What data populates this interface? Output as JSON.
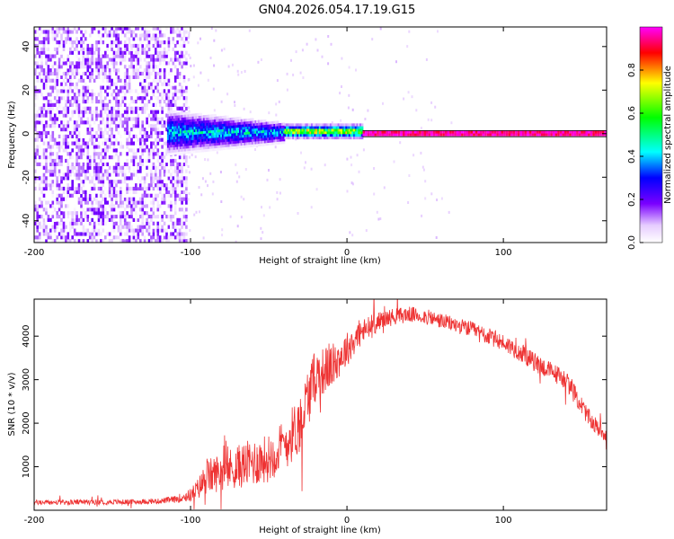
{
  "title": "GN04.2026.054.17.19.G15",
  "chart_data": [
    {
      "type": "heatmap",
      "xlabel": "Height of straight line (km)",
      "ylabel": "Frequency (Hz)",
      "xlim": [
        -200,
        166
      ],
      "ylim": [
        -50,
        49
      ],
      "xticks": [
        -200,
        -100,
        0,
        100
      ],
      "xtick_labels": [
        "-200",
        "-100",
        "0",
        "100"
      ],
      "yticks": [
        -40,
        -20,
        0,
        20,
        40
      ],
      "ytick_labels": [
        "-40",
        "-20",
        "0",
        "20",
        "40"
      ],
      "colorbar": {
        "label": "Normalized spectral amplitude",
        "range": [
          0,
          1
        ],
        "ticks": [
          0,
          0.2,
          0.4,
          0.6,
          0.8
        ],
        "tick_labels": [
          "0.0",
          "0.2",
          "0.4",
          "0.6",
          "0.8"
        ]
      },
      "regions": [
        {
          "x": [
            -200,
            -102
          ],
          "description": "noise",
          "amplitude_max": 0.2
        },
        {
          "x": [
            -115,
            -40
          ],
          "center_freq": 0,
          "spread_hz": 10,
          "amplitude_max": 0.55
        },
        {
          "x": [
            -40,
            10
          ],
          "center_freq": 0.5,
          "spread_hz": 3,
          "amplitude_max": 0.95
        },
        {
          "x": [
            10,
            166
          ],
          "center_freq": 0,
          "spread_hz": 1,
          "amplitude_max": 1.0
        }
      ]
    },
    {
      "type": "line",
      "xlabel": "Height of straight line (km)",
      "ylabel": "SNR (10 * v/v)",
      "xlim": [
        -200,
        166
      ],
      "ylim": [
        0,
        4850
      ],
      "xticks": [
        -200,
        -100,
        0,
        100
      ],
      "xtick_labels": [
        "-200",
        "-100",
        "0",
        "100"
      ],
      "yticks": [
        1000,
        2000,
        3000,
        4000
      ],
      "ytick_labels": [
        "1000",
        "2000",
        "3000",
        "4000"
      ],
      "color": "#ee3333",
      "series": [
        {
          "name": "SNR",
          "x": [
            -200,
            -180,
            -160,
            -140,
            -120,
            -110,
            -100,
            -95,
            -90,
            -80,
            -70,
            -60,
            -50,
            -40,
            -30,
            -25,
            -20,
            -15,
            -10,
            -5,
            0,
            5,
            10,
            15,
            20,
            30,
            40,
            50,
            60,
            70,
            80,
            90,
            100,
            110,
            120,
            130,
            140,
            145,
            150,
            155,
            160,
            166
          ],
          "values": [
            180,
            180,
            190,
            190,
            210,
            250,
            350,
            500,
            750,
            900,
            1000,
            1100,
            1200,
            1500,
            2000,
            2600,
            3100,
            3200,
            3300,
            3500,
            3700,
            3950,
            4100,
            4200,
            4350,
            4450,
            4500,
            4450,
            4350,
            4250,
            4150,
            4000,
            3850,
            3650,
            3400,
            3200,
            3000,
            2700,
            2400,
            2100,
            1900,
            1750
          ],
          "noise_amplitude": [
            60,
            60,
            60,
            60,
            60,
            80,
            150,
            250,
            400,
            450,
            500,
            550,
            550,
            600,
            700,
            700,
            600,
            550,
            500,
            450,
            400,
            350,
            300,
            300,
            200,
            200,
            180,
            180,
            180,
            180,
            180,
            200,
            200,
            220,
            220,
            220,
            220,
            220,
            220,
            200,
            200,
            200
          ]
        }
      ]
    }
  ]
}
